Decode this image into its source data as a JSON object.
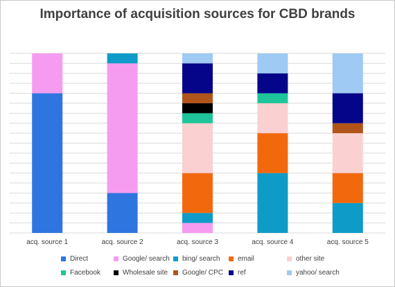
{
  "chart_data": {
    "type": "bar",
    "stacked": true,
    "title": "Importance of acquisition sources for CBD brands",
    "xlabel": "",
    "ylabel": "",
    "ylim": [
      0,
      9
    ],
    "grid": true,
    "legend_position": "bottom",
    "categories": [
      "acq. source 1",
      "acq. source 2",
      "acq. source 3",
      "acq. source 4",
      "acq. source 5"
    ],
    "series": [
      {
        "name": "Direct",
        "color": "#2e75e0",
        "values": [
          7,
          2,
          0,
          0,
          0
        ]
      },
      {
        "name": "Google/ search",
        "color": "#f59cf0",
        "values": [
          2,
          6.5,
          0.5,
          0,
          0
        ]
      },
      {
        "name": "bing/ search",
        "color": "#0f9bc8",
        "values": [
          0,
          0.5,
          0.5,
          3,
          1.5
        ]
      },
      {
        "name": "email",
        "color": "#f2690d",
        "values": [
          0,
          0,
          2,
          2,
          1.5
        ]
      },
      {
        "name": "other site",
        "color": "#fbd0d0",
        "values": [
          0,
          0,
          2.5,
          1.5,
          2
        ]
      },
      {
        "name": "Facebook",
        "color": "#1ec59a",
        "values": [
          0,
          0,
          0.5,
          0.5,
          0
        ]
      },
      {
        "name": "Wholesale site",
        "color": "#000000",
        "values": [
          0,
          0,
          0.5,
          0,
          0
        ]
      },
      {
        "name": "Google/ CPC",
        "color": "#b0541a",
        "values": [
          0,
          0,
          0.5,
          0,
          0.5
        ]
      },
      {
        "name": "ref",
        "color": "#05058a",
        "values": [
          0,
          0,
          1.5,
          1,
          1.5
        ]
      },
      {
        "name": "yahoo/ search",
        "color": "#9ecaf3",
        "values": [
          0,
          0,
          0.5,
          1,
          2
        ]
      }
    ]
  }
}
